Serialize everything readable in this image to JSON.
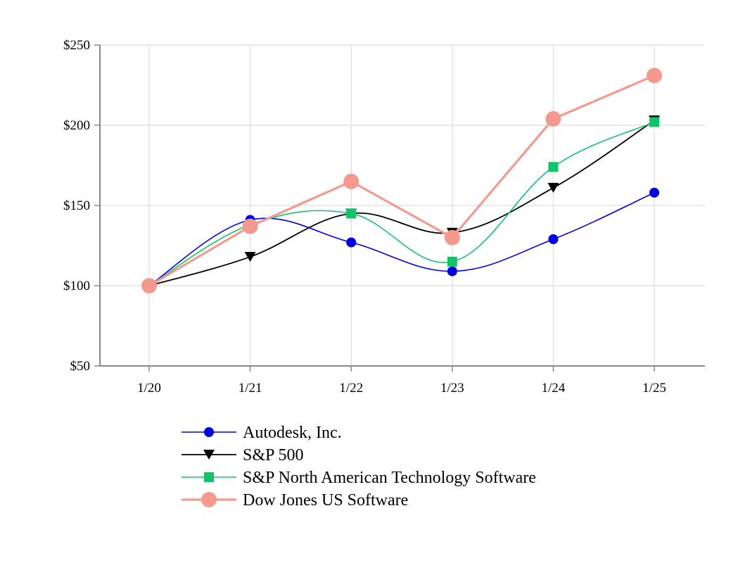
{
  "chart_data": {
    "type": "line",
    "title": "",
    "xlabel": "",
    "ylabel": "",
    "categories": [
      "1/20",
      "1/21",
      "1/22",
      "1/23",
      "1/24",
      "1/25"
    ],
    "ylim": [
      50,
      250
    ],
    "yticks": [
      50,
      100,
      150,
      200,
      250
    ],
    "ytick_labels": [
      "$50",
      "$100",
      "$150",
      "$200",
      "$250"
    ],
    "grid": true,
    "legend_position": "bottom",
    "series": [
      {
        "name": "Autodesk, Inc.",
        "marker": "circle",
        "color": "#0000e6",
        "values": [
          100,
          141,
          127,
          109,
          129,
          158
        ]
      },
      {
        "name": "S&P 500",
        "marker": "triangle-down",
        "color": "#000000",
        "values": [
          100,
          118,
          145,
          133,
          161,
          203
        ]
      },
      {
        "name": "S&P North American Technology Software",
        "marker": "square",
        "color": "#11c46a",
        "values": [
          100,
          138,
          145,
          115,
          174,
          202
        ]
      },
      {
        "name": "Dow Jones US Software",
        "marker": "circle-large",
        "color": "#f4998e",
        "values": [
          100,
          137,
          165,
          130,
          204,
          231
        ]
      }
    ]
  }
}
